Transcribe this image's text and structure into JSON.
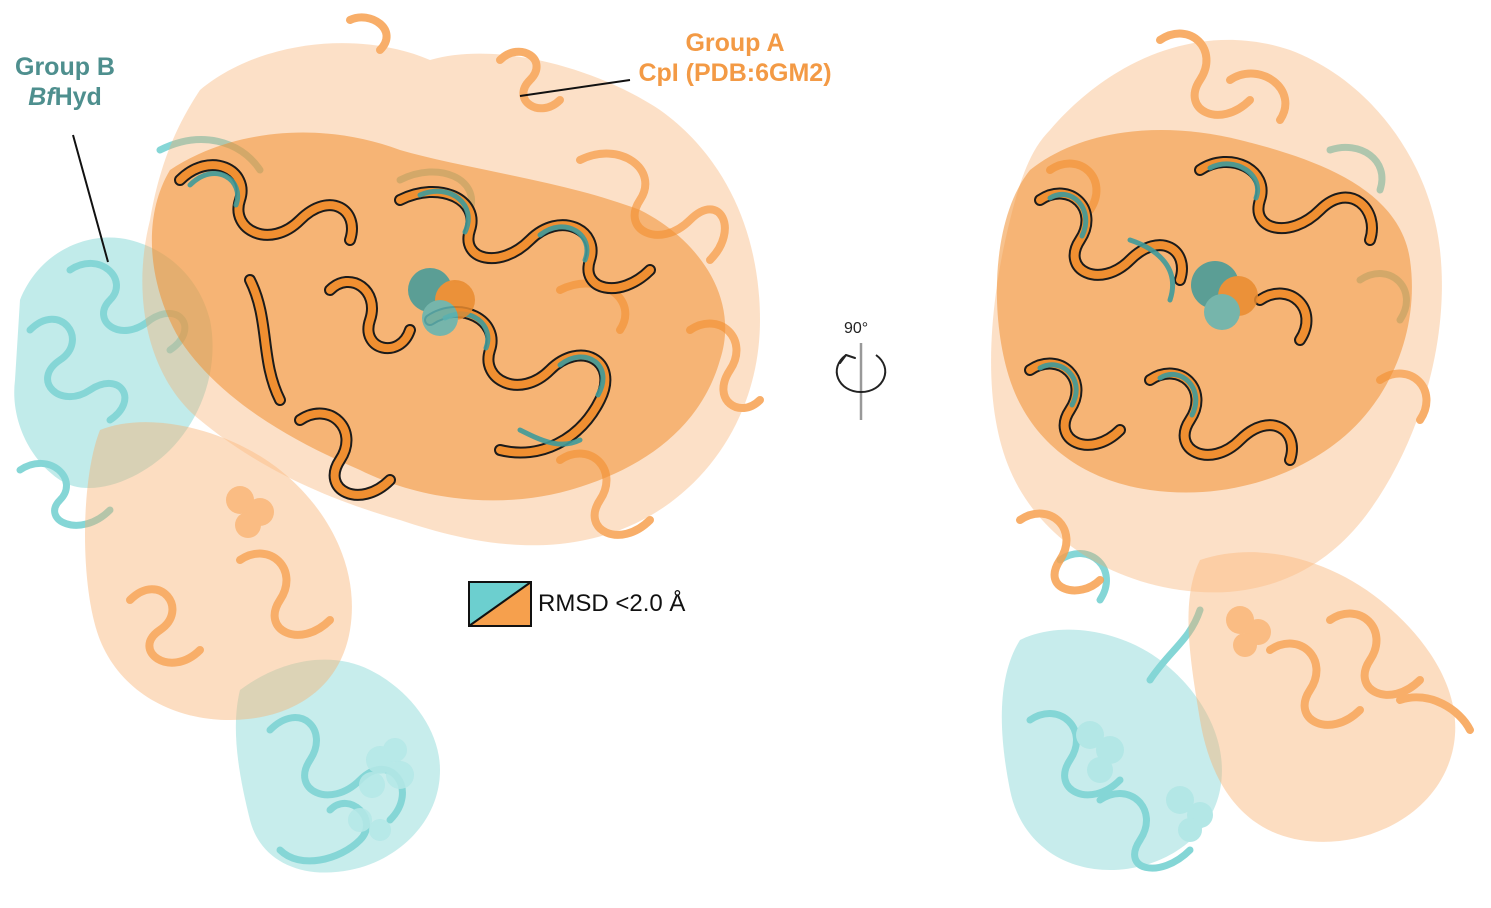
{
  "labels": {
    "group_b_line1": "Group B",
    "group_b_line2_italic": "Bf",
    "group_b_line2_rest": "Hyd",
    "group_a_line1": "Group A",
    "group_a_line2": "CpI (PDB:6GM2)"
  },
  "legend": {
    "text": "RMSD <2.0 Å",
    "color_group_b": "#6ccfcf",
    "color_group_a": "#f6a04d"
  },
  "rotation": {
    "angle": "90°"
  },
  "colors": {
    "group_a": "#f7a04f",
    "group_a_dark": "#e88a2e",
    "group_b": "#7dd3d3",
    "group_b_dark": "#3f9a9a",
    "label_b": "#4e8f8e",
    "label_a": "#f39a45"
  }
}
